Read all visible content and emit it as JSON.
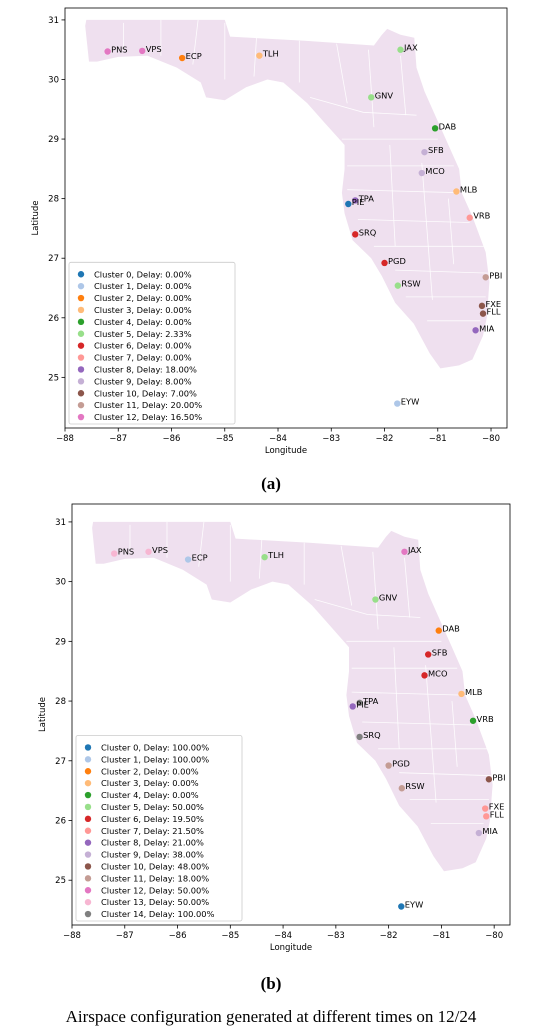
{
  "caption": "Airspace configuration generated at different times on 12/24",
  "chart_data": [
    {
      "type": "scatter",
      "panel_label": "(a)",
      "xlabel": "Longitude",
      "ylabel": "Latitude",
      "xlim": [
        -88,
        -79.7
      ],
      "ylim": [
        24.15,
        31.2
      ],
      "xticks": [
        "-88",
        "-87",
        "-86",
        "-85",
        "-84",
        "-83",
        "-82",
        "-81",
        "-80"
      ],
      "yticks": [
        "25",
        "26",
        "27",
        "28",
        "29",
        "30",
        "31"
      ],
      "grid": false,
      "legend_position": "bottom-left",
      "clusters": [
        {
          "label": "Cluster 0, Delay: 0.00%",
          "color": "#1f77b4"
        },
        {
          "label": "Cluster 1, Delay: 0.00%",
          "color": "#aec7e8"
        },
        {
          "label": "Cluster 2, Delay: 0.00%",
          "color": "#ff7f0e"
        },
        {
          "label": "Cluster 3, Delay: 0.00%",
          "color": "#ffbb78"
        },
        {
          "label": "Cluster 4, Delay: 0.00%",
          "color": "#2ca02c"
        },
        {
          "label": "Cluster 5, Delay: 2.33%",
          "color": "#98df8a"
        },
        {
          "label": "Cluster 6, Delay: 0.00%",
          "color": "#d62728"
        },
        {
          "label": "Cluster 7, Delay: 0.00%",
          "color": "#ff9896"
        },
        {
          "label": "Cluster 8, Delay: 18.00%",
          "color": "#9467bd"
        },
        {
          "label": "Cluster 9, Delay: 8.00%",
          "color": "#c5b0d5"
        },
        {
          "label": "Cluster 10, Delay: 7.00%",
          "color": "#8c564b"
        },
        {
          "label": "Cluster 11, Delay: 20.00%",
          "color": "#c49c94"
        },
        {
          "label": "Cluster 12, Delay: 16.50%",
          "color": "#e377c2"
        }
      ],
      "points": [
        {
          "name": "PNS",
          "x": -87.2,
          "y": 30.47,
          "cluster": 12
        },
        {
          "name": "VPS",
          "x": -86.55,
          "y": 30.48,
          "cluster": 12
        },
        {
          "name": "ECP",
          "x": -85.8,
          "y": 30.36,
          "cluster": 2
        },
        {
          "name": "TLH",
          "x": -84.35,
          "y": 30.4,
          "cluster": 3
        },
        {
          "name": "JAX",
          "x": -81.7,
          "y": 30.5,
          "cluster": 5
        },
        {
          "name": "GNV",
          "x": -82.25,
          "y": 29.7,
          "cluster": 5
        },
        {
          "name": "DAB",
          "x": -81.05,
          "y": 29.18,
          "cluster": 4
        },
        {
          "name": "SFB",
          "x": -81.25,
          "y": 28.78,
          "cluster": 9
        },
        {
          "name": "MCO",
          "x": -81.3,
          "y": 28.43,
          "cluster": 9
        },
        {
          "name": "MLB",
          "x": -80.65,
          "y": 28.12,
          "cluster": 3
        },
        {
          "name": "VRB",
          "x": -80.4,
          "y": 27.68,
          "cluster": 7
        },
        {
          "name": "TPA",
          "x": -82.55,
          "y": 27.97,
          "cluster": 8
        },
        {
          "name": "PIE",
          "x": -82.68,
          "y": 27.91,
          "cluster": 0
        },
        {
          "name": "SRQ",
          "x": -82.55,
          "y": 27.4,
          "cluster": 6
        },
        {
          "name": "PGD",
          "x": -82.0,
          "y": 26.92,
          "cluster": 6
        },
        {
          "name": "RSW",
          "x": -81.75,
          "y": 26.54,
          "cluster": 5
        },
        {
          "name": "PBI",
          "x": -80.1,
          "y": 26.68,
          "cluster": 11
        },
        {
          "name": "FXE",
          "x": -80.17,
          "y": 26.2,
          "cluster": 10
        },
        {
          "name": "FLL",
          "x": -80.15,
          "y": 26.07,
          "cluster": 10
        },
        {
          "name": "MIA",
          "x": -80.29,
          "y": 25.79,
          "cluster": 8
        },
        {
          "name": "EYW",
          "x": -81.76,
          "y": 24.56,
          "cluster": 1
        }
      ]
    },
    {
      "type": "scatter",
      "panel_label": "(b)",
      "xlabel": "Longitude",
      "ylabel": "Latitude",
      "xlim": [
        -88,
        -79.7
      ],
      "ylim": [
        24.25,
        31.3
      ],
      "xticks": [
        "-88",
        "-87",
        "-86",
        "-85",
        "-84",
        "-83",
        "-82",
        "-81",
        "-80"
      ],
      "yticks": [
        "25",
        "26",
        "27",
        "28",
        "29",
        "30",
        "31"
      ],
      "grid": false,
      "legend_position": "bottom-left",
      "clusters": [
        {
          "label": "Cluster 0, Delay: 100.00%",
          "color": "#1f77b4"
        },
        {
          "label": "Cluster 1, Delay: 100.00%",
          "color": "#aec7e8"
        },
        {
          "label": "Cluster 2, Delay: 0.00%",
          "color": "#ff7f0e"
        },
        {
          "label": "Cluster 3, Delay: 0.00%",
          "color": "#ffbb78"
        },
        {
          "label": "Cluster 4, Delay: 0.00%",
          "color": "#2ca02c"
        },
        {
          "label": "Cluster 5, Delay: 50.00%",
          "color": "#98df8a"
        },
        {
          "label": "Cluster 6, Delay: 19.50%",
          "color": "#d62728"
        },
        {
          "label": "Cluster 7, Delay: 21.50%",
          "color": "#ff9896"
        },
        {
          "label": "Cluster 8, Delay: 21.00%",
          "color": "#9467bd"
        },
        {
          "label": "Cluster 9, Delay: 38.00%",
          "color": "#c5b0d5"
        },
        {
          "label": "Cluster 10, Delay: 48.00%",
          "color": "#8c564b"
        },
        {
          "label": "Cluster 11, Delay: 18.00%",
          "color": "#c49c94"
        },
        {
          "label": "Cluster 12, Delay: 50.00%",
          "color": "#e377c2"
        },
        {
          "label": "Cluster 13, Delay: 50.00%",
          "color": "#f7b6d2"
        },
        {
          "label": "Cluster 14, Delay: 100.00%",
          "color": "#7f7f7f"
        }
      ],
      "points": [
        {
          "name": "PNS",
          "x": -87.2,
          "y": 30.47,
          "cluster": 13
        },
        {
          "name": "VPS",
          "x": -86.55,
          "y": 30.5,
          "cluster": 13
        },
        {
          "name": "ECP",
          "x": -85.8,
          "y": 30.37,
          "cluster": 1
        },
        {
          "name": "TLH",
          "x": -84.35,
          "y": 30.41,
          "cluster": 5
        },
        {
          "name": "JAX",
          "x": -81.7,
          "y": 30.5,
          "cluster": 12
        },
        {
          "name": "GNV",
          "x": -82.25,
          "y": 29.7,
          "cluster": 5
        },
        {
          "name": "DAB",
          "x": -81.05,
          "y": 29.18,
          "cluster": 2
        },
        {
          "name": "SFB",
          "x": -81.25,
          "y": 28.78,
          "cluster": 6
        },
        {
          "name": "MCO",
          "x": -81.32,
          "y": 28.43,
          "cluster": 6
        },
        {
          "name": "MLB",
          "x": -80.62,
          "y": 28.12,
          "cluster": 3
        },
        {
          "name": "VRB",
          "x": -80.4,
          "y": 27.67,
          "cluster": 4
        },
        {
          "name": "TPA",
          "x": -82.55,
          "y": 27.97,
          "cluster": 14
        },
        {
          "name": "PIE",
          "x": -82.68,
          "y": 27.91,
          "cluster": 8
        },
        {
          "name": "SRQ",
          "x": -82.55,
          "y": 27.4,
          "cluster": 14
        },
        {
          "name": "PGD",
          "x": -82.0,
          "y": 26.92,
          "cluster": 11
        },
        {
          "name": "RSW",
          "x": -81.75,
          "y": 26.54,
          "cluster": 11
        },
        {
          "name": "PBI",
          "x": -80.1,
          "y": 26.69,
          "cluster": 10
        },
        {
          "name": "FXE",
          "x": -80.17,
          "y": 26.2,
          "cluster": 7
        },
        {
          "name": "FLL",
          "x": -80.15,
          "y": 26.07,
          "cluster": 7
        },
        {
          "name": "MIA",
          "x": -80.29,
          "y": 25.79,
          "cluster": 9
        },
        {
          "name": "EYW",
          "x": -81.76,
          "y": 24.56,
          "cluster": 0
        }
      ]
    }
  ]
}
